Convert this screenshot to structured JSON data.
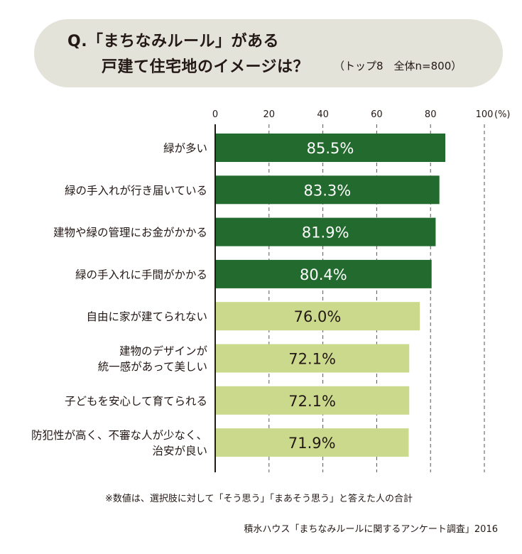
{
  "question": {
    "line1": "Q.「まちなみルール」がある",
    "line2": "戸建て住宅地のイメージは？",
    "meta": "（トップ8　全体n=800）"
  },
  "chart_data": {
    "type": "bar",
    "orientation": "horizontal",
    "axis": {
      "ticks": [
        0,
        20,
        40,
        60,
        80,
        100
      ],
      "tick_labels": [
        "0",
        "20",
        "40",
        "60",
        "80",
        "100"
      ],
      "unit": "(%)",
      "xlim": [
        0,
        100
      ],
      "grid": "dashed"
    },
    "categories": [
      [
        "緑が多い"
      ],
      [
        "緑の手入れが行き届いている"
      ],
      [
        "建物や緑の管理にお金がかかる"
      ],
      [
        "緑の手入れに手間がかかる"
      ],
      [
        "自由に家が建てられない"
      ],
      [
        "建物のデザインが",
        "統一感があって美しい"
      ],
      [
        "子どもを安心して育てられる"
      ],
      [
        "防犯性が高く、不審な人が少なく、",
        "治安が良い"
      ]
    ],
    "values": [
      85.5,
      83.3,
      81.9,
      80.4,
      76.0,
      72.1,
      72.1,
      71.9
    ],
    "value_labels": [
      "85.5%",
      "83.3%",
      "81.9%",
      "80.4%",
      "76.0%",
      "72.1%",
      "72.1%",
      "71.9%"
    ],
    "colors": {
      "dark_bar": "#236a2e",
      "light_bar": "#cbd98c",
      "dark_text": "#ffffff",
      "light_text": "#231815",
      "axis_line": "#231815",
      "grid": "#555555"
    },
    "dark_count": 4
  },
  "footnote": "※数値は、選択肢に対して「そう思う」「まあそう思う」と答えた人の合計",
  "source": "積水ハウス「まちなみルールに関するアンケート調査」2016"
}
